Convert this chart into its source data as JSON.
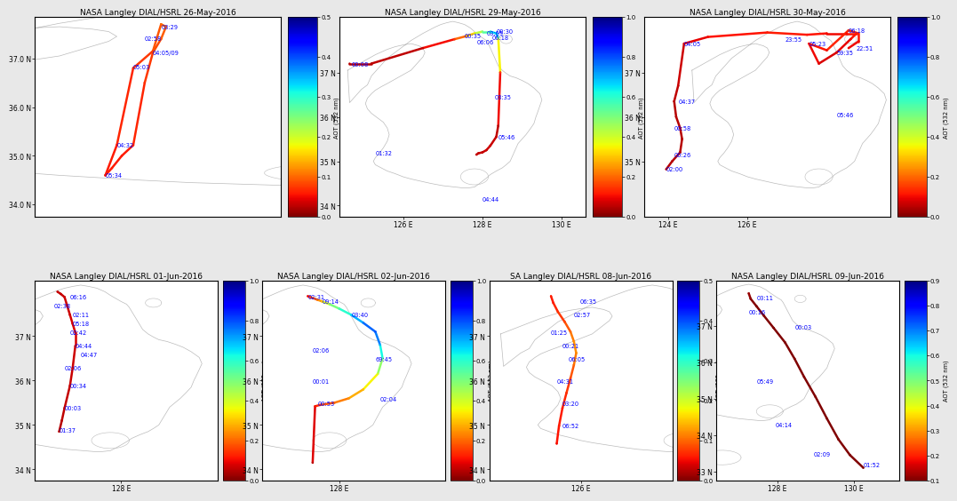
{
  "panels": [
    {
      "title": "NASA Langley DIAL/HSRL 26-May-2016",
      "cbar_max": 0.5,
      "cbar_min": 0.0,
      "cbar_ticks": [
        0,
        0.1,
        0.2,
        0.3,
        0.4,
        0.5
      ],
      "xlim": [
        126.05,
        127.55
      ],
      "ylim": [
        33.75,
        37.85
      ],
      "xticks": [],
      "xtick_labels": [],
      "yticks": [
        34.0,
        35.0,
        36.0,
        37.0
      ],
      "ytick_labels": [
        "34.0 N",
        "35.0 N",
        "36.0 N",
        "37.0 N"
      ],
      "time_labels": [
        "03:29",
        "02:58",
        "04:05/09",
        "05:03",
        "04:32",
        "05:34"
      ],
      "time_lons": [
        126.82,
        126.72,
        126.77,
        126.65,
        126.55,
        126.48
      ],
      "time_lats": [
        37.65,
        37.4,
        37.12,
        36.82,
        35.22,
        34.6
      ],
      "track_lons": [
        126.48,
        126.52,
        126.58,
        126.65,
        126.72,
        126.77,
        126.82,
        126.85,
        126.82,
        126.77,
        126.65,
        126.55,
        126.48
      ],
      "track_lats": [
        34.6,
        34.75,
        35.0,
        35.22,
        36.5,
        37.12,
        37.4,
        37.65,
        37.7,
        37.15,
        36.8,
        35.22,
        34.6
      ],
      "track_aot": [
        0.06,
        0.06,
        0.06,
        0.06,
        0.07,
        0.08,
        0.09,
        0.1,
        0.1,
        0.08,
        0.07,
        0.06,
        0.06
      ],
      "coast_type": "korea"
    },
    {
      "title": "NASA Langley DIAL/HSRL 29-May-2016",
      "cbar_max": 1.0,
      "cbar_min": 0.0,
      "cbar_ticks": [
        0,
        0.2,
        0.4,
        0.6,
        0.8,
        1.0
      ],
      "xlim": [
        124.4,
        130.6
      ],
      "ylim": [
        33.75,
        38.25
      ],
      "xticks": [
        126.0,
        128.0,
        130.0
      ],
      "xtick_labels": [
        "126 E",
        "128 E",
        "130 E"
      ],
      "yticks": [
        34.0,
        35.0,
        36.0,
        37.0
      ],
      "ytick_labels": [
        "34 N",
        "35 N",
        "36 N",
        "37 N"
      ],
      "time_labels": [
        "00:30",
        "00:35",
        "03:05",
        "06:18",
        "06:06",
        "03:35",
        "05:46",
        "01:32",
        "04:44",
        "00:08"
      ],
      "time_lons": [
        128.35,
        127.55,
        128.1,
        128.25,
        127.85,
        128.3,
        128.4,
        125.3,
        128.0,
        124.7
      ],
      "time_lats": [
        37.92,
        37.82,
        37.88,
        37.78,
        37.68,
        36.45,
        35.55,
        35.18,
        34.15,
        37.18
      ],
      "track_lons": [
        124.65,
        125.2,
        126.5,
        127.3,
        127.6,
        127.8,
        128.0,
        128.2,
        128.35,
        128.4,
        128.45,
        128.4,
        128.35,
        128.2,
        128.1,
        128.0,
        127.9,
        127.85
      ],
      "track_lats": [
        37.2,
        37.2,
        37.55,
        37.75,
        37.82,
        37.88,
        37.92,
        37.92,
        37.88,
        37.78,
        37.0,
        35.8,
        35.55,
        35.35,
        35.25,
        35.2,
        35.18,
        35.15
      ],
      "track_aot": [
        0.05,
        0.05,
        0.06,
        0.15,
        0.25,
        0.35,
        0.5,
        0.6,
        0.7,
        0.55,
        0.15,
        0.05,
        0.06,
        0.07,
        0.07,
        0.06,
        0.06,
        0.06
      ],
      "coast_type": "korea"
    },
    {
      "title": "NASA Langley DIAL/HSRL 30-May-2016",
      "cbar_max": 1.0,
      "cbar_min": 0.0,
      "cbar_ticks": [
        0,
        0.2,
        0.4,
        0.6,
        0.8,
        1.0
      ],
      "xlim": [
        123.4,
        129.6
      ],
      "ylim": [
        33.75,
        38.25
      ],
      "xticks": [
        124.0,
        126.0
      ],
      "xtick_labels": [
        "124 E",
        "126 E"
      ],
      "yticks": [
        35.0,
        36.0,
        37.0
      ],
      "ytick_labels": [
        "35 N",
        "36 N",
        "37 N"
      ],
      "time_labels": [
        "06:18",
        "23:55",
        "04:05",
        "05:23",
        "22:51",
        "59:35",
        "04:37",
        "05:46",
        "00:58",
        "00:26",
        "02:00"
      ],
      "time_lons": [
        128.55,
        126.95,
        124.4,
        127.55,
        128.75,
        128.25,
        124.25,
        128.25,
        124.15,
        124.15,
        123.95
      ],
      "time_lats": [
        37.95,
        37.75,
        37.65,
        37.65,
        37.55,
        37.45,
        36.35,
        36.05,
        35.75,
        35.15,
        34.82
      ],
      "track_lons": [
        123.95,
        124.1,
        124.3,
        124.35,
        124.3,
        124.2,
        124.15,
        124.25,
        124.4,
        125.0,
        126.5,
        127.5,
        128.0,
        128.5,
        128.75,
        128.6,
        128.25,
        127.8,
        127.55,
        128.0,
        128.55,
        128.8,
        128.8,
        128.55
      ],
      "track_lats": [
        34.82,
        35.0,
        35.2,
        35.5,
        35.75,
        36.0,
        36.35,
        36.7,
        37.65,
        37.8,
        37.9,
        37.85,
        37.88,
        37.88,
        37.88,
        37.75,
        37.45,
        37.2,
        37.65,
        37.5,
        37.95,
        37.88,
        37.7,
        37.55
      ],
      "track_aot": [
        0.05,
        0.05,
        0.05,
        0.05,
        0.05,
        0.05,
        0.05,
        0.06,
        0.08,
        0.1,
        0.12,
        0.12,
        0.1,
        0.1,
        0.12,
        0.1,
        0.08,
        0.08,
        0.12,
        0.1,
        0.15,
        0.12,
        0.1,
        0.1
      ],
      "coast_type": "korea"
    },
    {
      "title": "NASA Langley DIAL/HSRL 01-Jun-2016",
      "cbar_max": 1.0,
      "cbar_min": 0.0,
      "cbar_ticks": [
        0,
        0.2,
        0.4,
        0.6,
        0.8,
        1.0
      ],
      "xlim": [
        126.4,
        129.8
      ],
      "ylim": [
        33.75,
        38.25
      ],
      "xticks": [
        128.0
      ],
      "xtick_labels": [
        "128 E"
      ],
      "yticks": [
        34.0,
        35.0,
        36.0,
        37.0
      ],
      "ytick_labels": [
        "34 N",
        "35 N",
        "36 N",
        "37 N"
      ],
      "time_labels": [
        "06:16",
        "02:38",
        "02:11",
        "05:18",
        "02:42",
        "04:44",
        "02:06",
        "00:34",
        "00:03",
        "01:37",
        "04:47"
      ],
      "time_lons": [
        127.05,
        126.75,
        127.1,
        127.1,
        127.05,
        127.15,
        126.95,
        127.05,
        126.95,
        126.85,
        127.25
      ],
      "time_lats": [
        37.88,
        37.68,
        37.48,
        37.28,
        37.08,
        36.78,
        36.28,
        35.88,
        35.38,
        34.88,
        36.58
      ],
      "track_lons": [
        126.85,
        126.9,
        126.95,
        127.05,
        127.1,
        127.15,
        127.15,
        127.1,
        127.05,
        127.0,
        126.95,
        126.88,
        126.82
      ],
      "track_lats": [
        34.85,
        35.1,
        35.38,
        35.88,
        36.28,
        36.78,
        37.08,
        37.28,
        37.48,
        37.68,
        37.88,
        37.95,
        38.0
      ],
      "track_aot": [
        0.05,
        0.05,
        0.06,
        0.06,
        0.07,
        0.07,
        0.08,
        0.08,
        0.07,
        0.07,
        0.07,
        0.06,
        0.06
      ],
      "coast_type": "korea"
    },
    {
      "title": "NASA Langley DIAL/HSRL 02-Jun-2016",
      "cbar_max": 1.0,
      "cbar_min": 0.0,
      "cbar_ticks": [
        0,
        0.2,
        0.4,
        0.6,
        0.8,
        1.0
      ],
      "xlim": [
        126.4,
        130.2
      ],
      "ylim": [
        33.75,
        38.25
      ],
      "xticks": [
        128.0
      ],
      "xtick_labels": [
        "128 E"
      ],
      "yticks": [
        34.0,
        35.0,
        36.0,
        37.0
      ],
      "ytick_labels": [
        "34 N",
        "35 N",
        "36 N",
        "37 N"
      ],
      "time_labels": [
        "02:31",
        "09:14",
        "03:40",
        "02:06",
        "69:45",
        "00:01",
        "00:53",
        "02:04"
      ],
      "time_lons": [
        127.35,
        127.65,
        128.25,
        127.45,
        128.75,
        127.45,
        127.55,
        128.85
      ],
      "time_lats": [
        37.88,
        37.78,
        37.48,
        36.68,
        36.48,
        35.98,
        35.48,
        35.58
      ],
      "track_lons": [
        127.35,
        127.4,
        127.55,
        127.65,
        127.8,
        128.0,
        128.25,
        128.5,
        128.75,
        128.85,
        128.9,
        128.8,
        128.5,
        128.2,
        127.9,
        127.6,
        127.5,
        127.45
      ],
      "track_lats": [
        37.9,
        37.88,
        37.82,
        37.78,
        37.72,
        37.62,
        37.48,
        37.3,
        37.1,
        36.8,
        36.5,
        36.15,
        35.8,
        35.6,
        35.5,
        35.45,
        35.42,
        34.15
      ],
      "track_aot": [
        0.1,
        0.15,
        0.2,
        0.3,
        0.45,
        0.55,
        0.65,
        0.75,
        0.8,
        0.7,
        0.55,
        0.4,
        0.3,
        0.25,
        0.2,
        0.15,
        0.12,
        0.05
      ],
      "coast_type": "korea"
    },
    {
      "title": "SA Langley DIAL/HSRL 08-Jun-2016",
      "cbar_max": 0.5,
      "cbar_min": 0.0,
      "cbar_ticks": [
        0,
        0.1,
        0.2,
        0.3,
        0.4,
        0.5
      ],
      "xlim": [
        124.4,
        127.6
      ],
      "ylim": [
        33.75,
        38.25
      ],
      "xticks": [
        126.0
      ],
      "xtick_labels": [
        "126 E"
      ],
      "yticks": [
        34.0,
        35.0,
        36.0,
        37.0
      ],
      "ytick_labels": [
        "34 N",
        "35 N",
        "36 N",
        "37 N"
      ],
      "time_labels": [
        "06:35",
        "02:57",
        "01:25",
        "00:21",
        "06:05",
        "04:31",
        "03:20",
        "06:52"
      ],
      "time_lons": [
        125.98,
        125.88,
        125.48,
        125.68,
        125.78,
        125.58,
        125.68,
        125.68
      ],
      "time_lats": [
        37.78,
        37.48,
        37.08,
        36.78,
        36.48,
        35.98,
        35.48,
        34.98
      ],
      "track_lons": [
        125.48,
        125.52,
        125.6,
        125.72,
        125.82,
        125.88,
        125.92,
        125.88,
        125.82,
        125.75,
        125.68,
        125.62,
        125.58
      ],
      "track_lats": [
        37.9,
        37.75,
        37.55,
        37.32,
        37.1,
        36.88,
        36.62,
        36.35,
        36.05,
        35.72,
        35.38,
        34.98,
        34.58
      ],
      "track_aot": [
        0.06,
        0.06,
        0.07,
        0.08,
        0.1,
        0.12,
        0.12,
        0.1,
        0.08,
        0.07,
        0.06,
        0.06,
        0.05
      ],
      "coast_type": "korea"
    },
    {
      "title": "NASA Langley DIAL/HSRL 09-Jun-2016",
      "cbar_max": 0.9,
      "cbar_min": 0.1,
      "cbar_ticks": [
        0.1,
        0.2,
        0.3,
        0.4,
        0.5,
        0.6,
        0.7,
        0.8,
        0.9
      ],
      "xlim": [
        126.4,
        131.2
      ],
      "ylim": [
        32.75,
        38.25
      ],
      "xticks": [
        128.0,
        130.0
      ],
      "xtick_labels": [
        "128 E",
        "130 E"
      ],
      "yticks": [
        33.0,
        34.0,
        35.0,
        36.0,
        37.0
      ],
      "ytick_labels": [
        "33 N",
        "34 N",
        "35 N",
        "36 N",
        "37 N"
      ],
      "time_labels": [
        "03:11",
        "00:16",
        "00:03",
        "05:49",
        "04:14",
        "02:09",
        "01:52"
      ],
      "time_lons": [
        127.45,
        127.25,
        128.45,
        127.45,
        127.95,
        128.95,
        130.25
      ],
      "time_lats": [
        37.78,
        37.38,
        36.98,
        35.48,
        34.28,
        33.48,
        33.18
      ],
      "track_lons": [
        127.25,
        127.3,
        127.45,
        127.65,
        127.9,
        128.2,
        128.45,
        128.7,
        129.0,
        129.3,
        129.6,
        129.9,
        130.25
      ],
      "track_lats": [
        37.9,
        37.75,
        37.55,
        37.28,
        36.95,
        36.55,
        36.1,
        35.6,
        35.05,
        34.45,
        33.88,
        33.45,
        33.1
      ],
      "track_aot": [
        0.12,
        0.11,
        0.1,
        0.1,
        0.1,
        0.1,
        0.1,
        0.1,
        0.1,
        0.1,
        0.1,
        0.1,
        0.1
      ],
      "coast_type": "korea"
    }
  ],
  "colorbar_label": "AOT (532 nm)",
  "bg_color": "#e8e8e8",
  "map_bg_color": "#ffffff",
  "coast_color": "#bbbbbb",
  "title_fontsize": 6.5,
  "label_fontsize": 4.8,
  "tick_fontsize": 5.5,
  "cbar_tick_fontsize": 5.0
}
